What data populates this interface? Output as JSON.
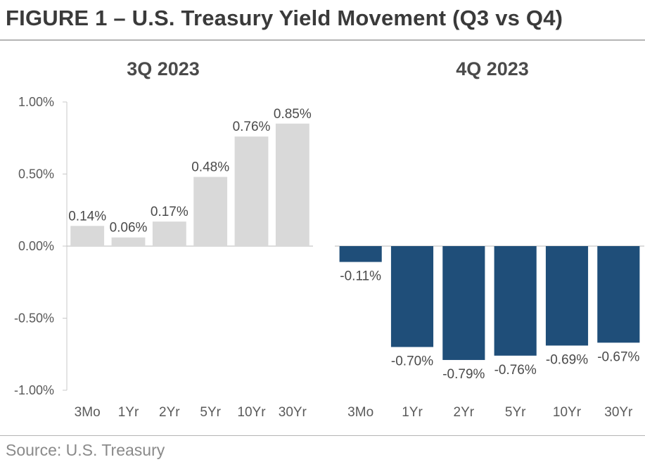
{
  "title": "FIGURE 1 – U.S. Treasury Yield Movement (Q3 vs Q4)",
  "source": "Source: U.S. Treasury",
  "chart_data": [
    {
      "type": "bar",
      "title": "3Q 2023",
      "categories": [
        "3Mo",
        "1Yr",
        "2Yr",
        "5Yr",
        "10Yr",
        "30Yr"
      ],
      "values": [
        0.14,
        0.06,
        0.17,
        0.48,
        0.76,
        0.85
      ],
      "data_labels": [
        "0.14%",
        "0.06%",
        "0.17%",
        "0.48%",
        "0.76%",
        "0.85%"
      ],
      "ylim": [
        -1.0,
        1.0
      ],
      "yticks": [
        1.0,
        0.5,
        0.0,
        -0.5,
        -1.0
      ],
      "ytick_labels": [
        "1.00%",
        "0.50%",
        "0.00%",
        "-0.50%",
        "-1.00%"
      ],
      "color": "#d9d9d9",
      "grid": false,
      "legend": "none"
    },
    {
      "type": "bar",
      "title": "4Q 2023",
      "categories": [
        "3Mo",
        "1Yr",
        "2Yr",
        "5Yr",
        "10Yr",
        "30Yr"
      ],
      "values": [
        -0.11,
        -0.7,
        -0.79,
        -0.76,
        -0.69,
        -0.67
      ],
      "data_labels": [
        "-0.11%",
        "-0.70%",
        "-0.79%",
        "-0.76%",
        "-0.69%",
        "-0.67%"
      ],
      "ylim": [
        -1.0,
        1.0
      ],
      "color": "#1f4e79",
      "grid": false,
      "legend": "none"
    }
  ]
}
